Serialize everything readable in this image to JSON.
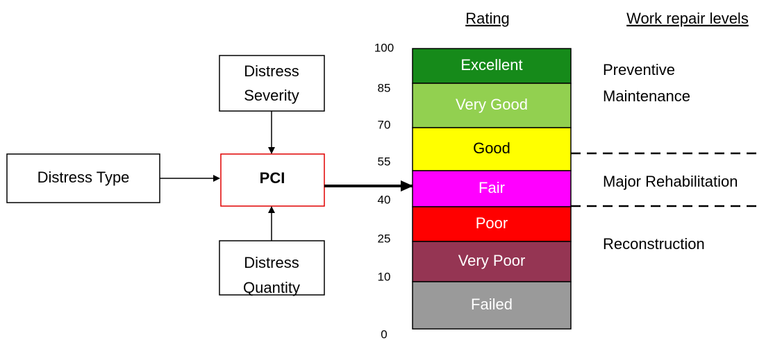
{
  "inputs": {
    "type": "Distress Type",
    "severity": [
      "Distress",
      "Severity"
    ],
    "quantity": [
      "Distress",
      "Quantity"
    ],
    "index": "PCI"
  },
  "headers": {
    "rating": "Rating",
    "repair": "Work repair levels"
  },
  "scale": [
    100,
    85,
    70,
    55,
    40,
    25,
    10,
    0
  ],
  "ratings": [
    "Excellent",
    "Very Good",
    "Good",
    "Fair",
    "Poor",
    "Very Poor",
    "Failed"
  ],
  "repair_levels": [
    [
      "Preventive",
      "Maintenance"
    ],
    [
      "Major Rehabilitation"
    ],
    [
      "Reconstruction"
    ]
  ]
}
